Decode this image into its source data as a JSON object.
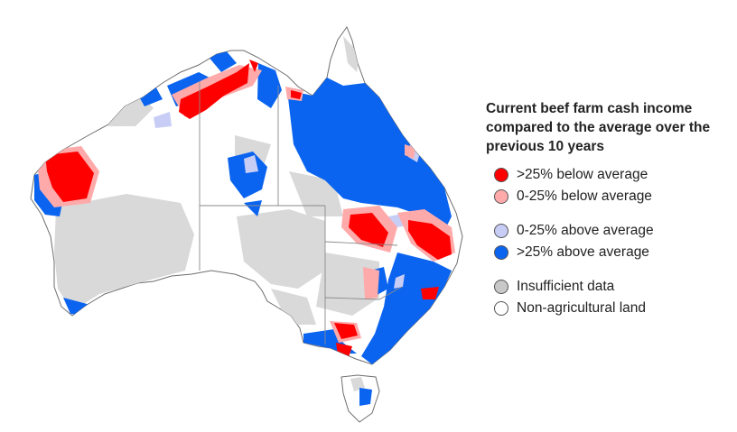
{
  "legend": {
    "title_lines": [
      "Current beef farm cash income",
      "compared to the average over the",
      "previous 10 years"
    ],
    "items": [
      {
        "label": ">25% below average",
        "color": "#ff0000"
      },
      {
        "label": "0-25% below average",
        "color": "#ffaaaa"
      },
      {
        "label": "0-25% above average",
        "color": "#c8cdf5"
      },
      {
        "label": ">25% above average",
        "color": "#0a64f0"
      },
      {
        "label": "Insufficient data",
        "color": "#c8c8c8"
      },
      {
        "label": "Non-agricultural land",
        "color": "#ffffff"
      }
    ]
  },
  "map": {
    "region": "Australia",
    "colors": {
      "land": "#ffffff",
      "outline": "#6e6e6e",
      "insufficient": "#d9d9d9",
      "strong_below": "#ff0000",
      "mild_below": "#ffaaaa",
      "mild_above": "#c8cdf5",
      "strong_above": "#0a64f0"
    }
  }
}
